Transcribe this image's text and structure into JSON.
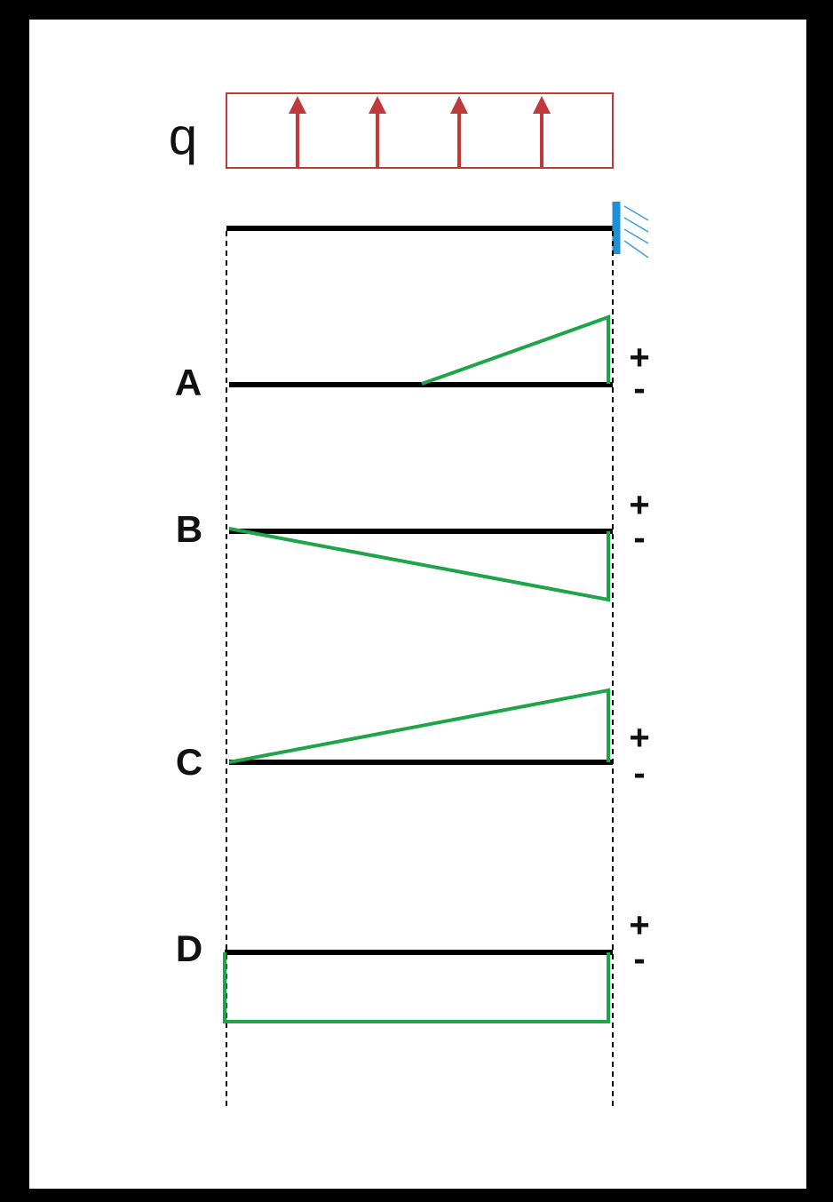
{
  "load": {
    "label": "q"
  },
  "options": [
    {
      "label": "A",
      "plus": "+",
      "minus": "-"
    },
    {
      "label": "B",
      "plus": "+",
      "minus": "-"
    },
    {
      "label": "C",
      "plus": "+",
      "minus": "-"
    },
    {
      "label": "D",
      "plus": "+",
      "minus": "-"
    }
  ]
}
